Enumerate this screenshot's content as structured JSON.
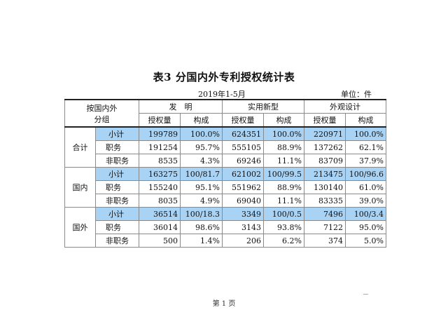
{
  "title": "表3  分国内外专利授权统计表",
  "period": "2019年1-5月",
  "unit": "单位：件",
  "header": {
    "group_label_line1": "按国内外",
    "group_label_line2": "分组",
    "categories": [
      "发　明",
      "实用新型",
      "外观设计"
    ],
    "sub_cols": [
      "授权量",
      "构成"
    ]
  },
  "groups": [
    {
      "name": "合计",
      "rows": [
        {
          "label": "小计",
          "values": [
            "199789",
            "100.0%",
            "624351",
            "100.0%",
            "220971",
            "100.0%"
          ]
        },
        {
          "label": "职务",
          "values": [
            "191254",
            "95.7%",
            "555105",
            "88.9%",
            "137262",
            "62.1%"
          ]
        },
        {
          "label": "非职务",
          "values": [
            "8535",
            "4.3%",
            "69246",
            "11.1%",
            "83709",
            "37.9%"
          ]
        }
      ]
    },
    {
      "name": "国内",
      "rows": [
        {
          "label": "小计",
          "values": [
            "163275",
            "100/81.7",
            "621002",
            "100/99.5",
            "213475",
            "100/96.6"
          ]
        },
        {
          "label": "职务",
          "values": [
            "155240",
            "95.1%",
            "551962",
            "88.9%",
            "130140",
            "61.0%"
          ]
        },
        {
          "label": "非职务",
          "values": [
            "8035",
            "4.9%",
            "69040",
            "11.1%",
            "83335",
            "39.0%"
          ]
        }
      ]
    },
    {
      "name": "国外",
      "rows": [
        {
          "label": "小计",
          "values": [
            "36514",
            "100/18.3",
            "3349",
            "100/0.5",
            "7496",
            "100/3.4"
          ]
        },
        {
          "label": "职务",
          "values": [
            "36014",
            "98.6%",
            "3143",
            "93.8%",
            "7122",
            "95.0%"
          ]
        },
        {
          "label": "非职务",
          "values": [
            "500",
            "1.4%",
            "206",
            "6.2%",
            "374",
            "5.0%"
          ]
        }
      ]
    }
  ],
  "footer": "第 1 页",
  "colors": {
    "highlight": "#a8d3f5"
  }
}
